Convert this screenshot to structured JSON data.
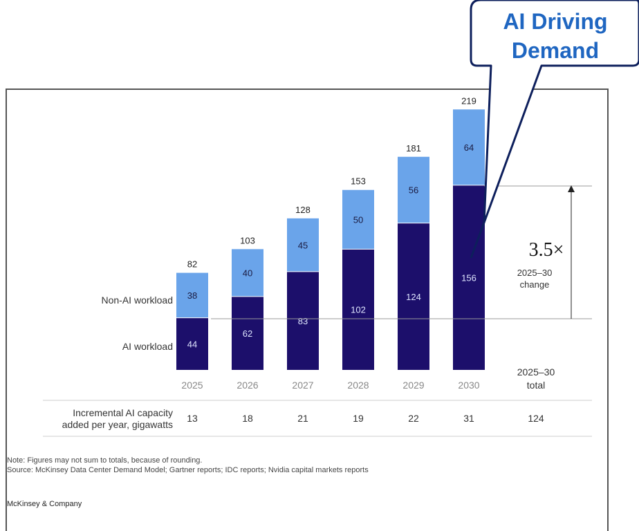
{
  "chart_data": {
    "type": "bar",
    "stacked": true,
    "categories": [
      "2025",
      "2026",
      "2027",
      "2028",
      "2029",
      "2030"
    ],
    "series": [
      {
        "name": "AI workload",
        "values": [
          44,
          62,
          83,
          102,
          124,
          156
        ],
        "color": "#1c0f6b"
      },
      {
        "name": "Non-AI workload",
        "values": [
          38,
          40,
          45,
          50,
          56,
          64
        ],
        "color": "#6aa4ea"
      }
    ],
    "totals": [
      82,
      103,
      128,
      153,
      181,
      219
    ],
    "ylim": [
      0,
      219
    ],
    "incremental_row": {
      "label_line1": "Incremental AI capacity",
      "label_line2": "added per year, gigawatts",
      "values": [
        "13",
        "18",
        "21",
        "19",
        "22",
        "31"
      ],
      "total_value": "124"
    },
    "summary": {
      "multiplier": "3.5×",
      "period": "2025–30",
      "change_label": "change",
      "total_period": "2025–30",
      "total_label": "total"
    }
  },
  "callout": {
    "line1": "AI Driving",
    "line2": "Demand"
  },
  "note": "Note: Figures may not sum to totals, because of rounding.",
  "source": "Source: McKinsey Data Center Demand Model; Gartner reports; IDC reports; Nvidia capital markets reports",
  "brand": "McKinsey & Company",
  "colors": {
    "ai": "#1c0f6b",
    "non_ai": "#6aa4ea",
    "callout_border": "#0d1f5c",
    "callout_text": "#1f66c1"
  }
}
